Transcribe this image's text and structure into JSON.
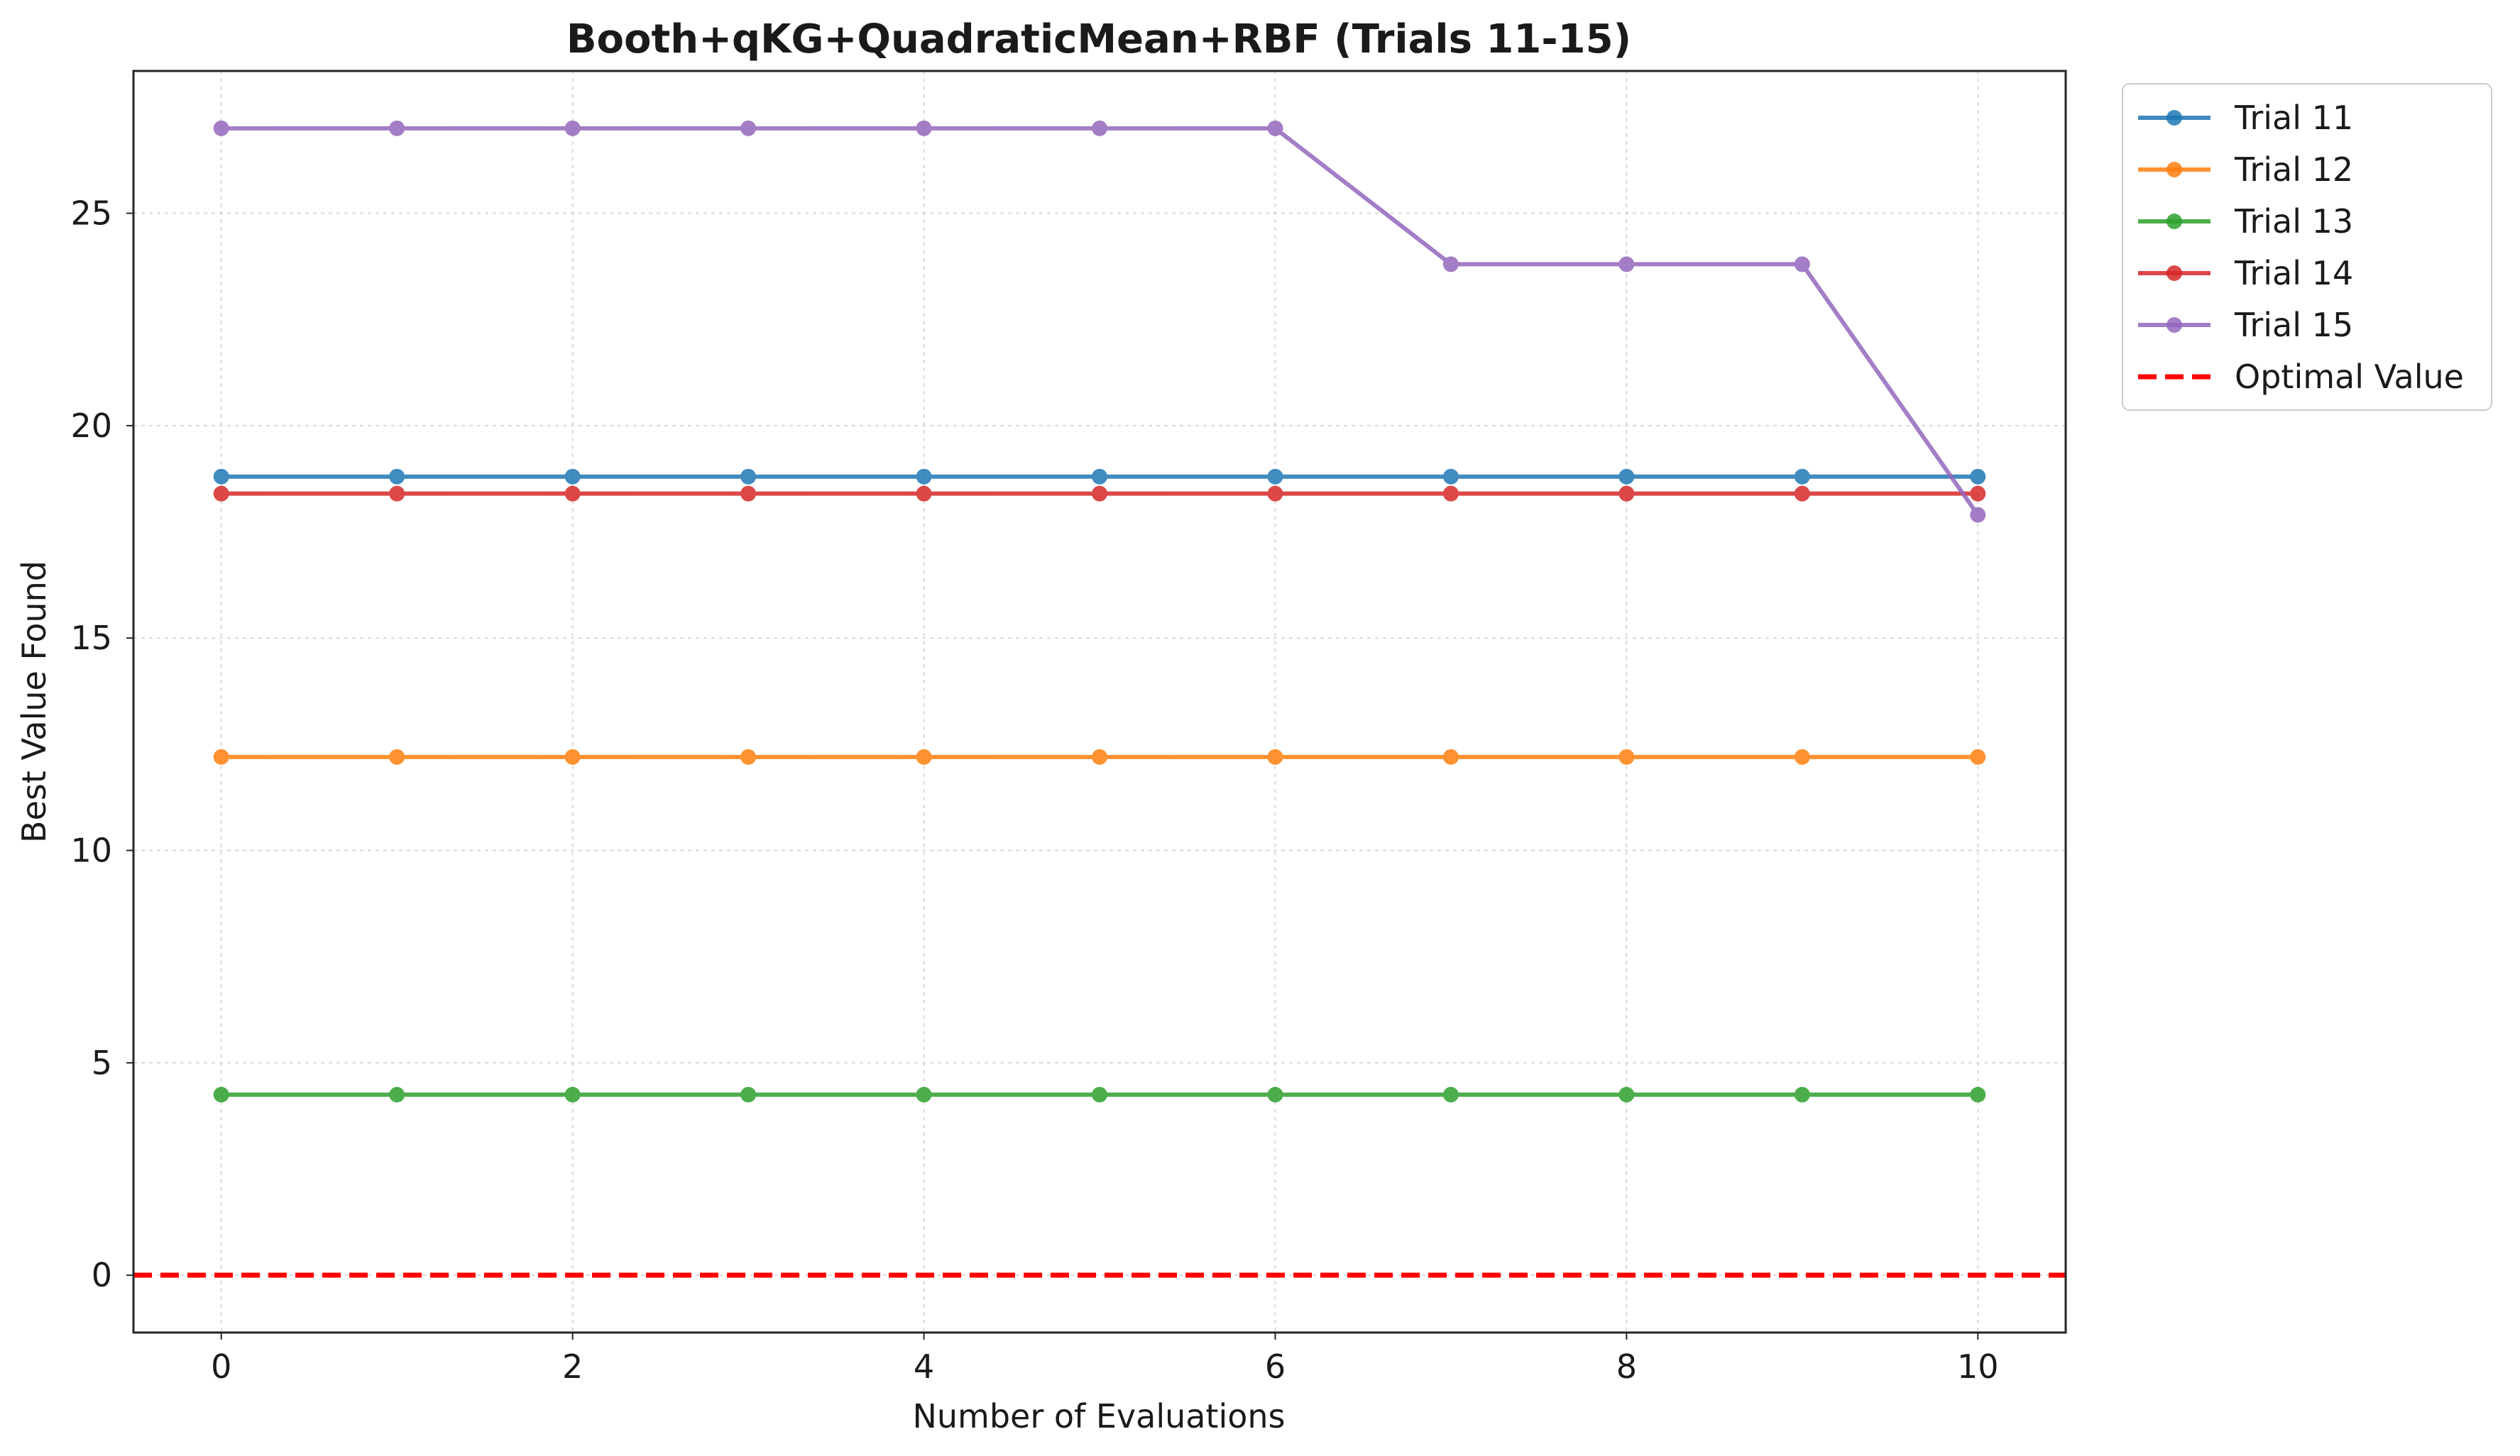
{
  "chart_data": {
    "type": "line",
    "title": "Booth+qKG+QuadraticMean+RBF (Trials 11-15)",
    "xlabel": "Number of Evaluations",
    "ylabel": "Best Value Found",
    "xlim": [
      -0.5,
      10.5
    ],
    "ylim": [
      -1.35,
      28.35
    ],
    "xticks": [
      0,
      2,
      4,
      6,
      8,
      10
    ],
    "yticks": [
      0,
      5,
      10,
      15,
      20,
      25
    ],
    "grid": true,
    "legend_position": "outside-top-right",
    "x": [
      0,
      1,
      2,
      3,
      4,
      5,
      6,
      7,
      8,
      9,
      10
    ],
    "series": [
      {
        "name": "Trial 11",
        "color": "#1f77b4",
        "values": [
          18.8,
          18.8,
          18.8,
          18.8,
          18.8,
          18.8,
          18.8,
          18.8,
          18.8,
          18.8,
          18.8
        ]
      },
      {
        "name": "Trial 12",
        "color": "#ff7f0e",
        "values": [
          12.2,
          12.2,
          12.2,
          12.2,
          12.2,
          12.2,
          12.2,
          12.2,
          12.2,
          12.2,
          12.2
        ]
      },
      {
        "name": "Trial 13",
        "color": "#2ca02c",
        "values": [
          4.25,
          4.25,
          4.25,
          4.25,
          4.25,
          4.25,
          4.25,
          4.25,
          4.25,
          4.25,
          4.25
        ]
      },
      {
        "name": "Trial 14",
        "color": "#d62728",
        "values": [
          18.4,
          18.4,
          18.4,
          18.4,
          18.4,
          18.4,
          18.4,
          18.4,
          18.4,
          18.4,
          18.4
        ]
      },
      {
        "name": "Trial 15",
        "color": "#9467bd",
        "values": [
          27.0,
          27.0,
          27.0,
          27.0,
          27.0,
          27.0,
          27.0,
          23.8,
          23.8,
          23.8,
          17.9
        ]
      }
    ],
    "reference_line": {
      "name": "Optimal Value",
      "value": 0,
      "color": "#ff0000",
      "style": "dashed"
    }
  }
}
